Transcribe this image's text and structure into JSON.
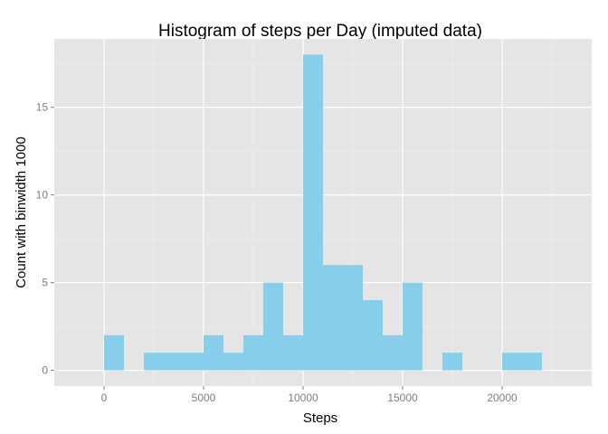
{
  "chart_data": {
    "type": "bar",
    "title": "Histogram of steps per Day (imputed data)",
    "xlabel": "Steps",
    "ylabel": "Count with binwidth 1000",
    "binwidth": 1000,
    "bins": [
      {
        "start": 0,
        "end": 1000,
        "count": 2
      },
      {
        "start": 2000,
        "end": 3000,
        "count": 1
      },
      {
        "start": 3000,
        "end": 4000,
        "count": 1
      },
      {
        "start": 4000,
        "end": 5000,
        "count": 1
      },
      {
        "start": 5000,
        "end": 6000,
        "count": 2
      },
      {
        "start": 6000,
        "end": 7000,
        "count": 1
      },
      {
        "start": 7000,
        "end": 8000,
        "count": 2
      },
      {
        "start": 8000,
        "end": 9000,
        "count": 5
      },
      {
        "start": 9000,
        "end": 10000,
        "count": 2
      },
      {
        "start": 10000,
        "end": 11000,
        "count": 18
      },
      {
        "start": 11000,
        "end": 12000,
        "count": 6
      },
      {
        "start": 12000,
        "end": 13000,
        "count": 6
      },
      {
        "start": 13000,
        "end": 14000,
        "count": 4
      },
      {
        "start": 14000,
        "end": 15000,
        "count": 2
      },
      {
        "start": 15000,
        "end": 16000,
        "count": 5
      },
      {
        "start": 17000,
        "end": 18000,
        "count": 1
      },
      {
        "start": 20000,
        "end": 21000,
        "count": 1
      },
      {
        "start": 21000,
        "end": 22000,
        "count": 1
      }
    ],
    "xlim": [
      -2500,
      24500
    ],
    "ylim": [
      -0.9,
      18.9
    ],
    "x_ticks": [
      0,
      5000,
      10000,
      15000,
      20000
    ],
    "x_tick_labels": [
      "0",
      "5000",
      "10000",
      "15000",
      "20000"
    ],
    "y_ticks": [
      0,
      5,
      10,
      15
    ],
    "y_tick_labels": [
      "0",
      "5",
      "10",
      "15"
    ],
    "grid": true,
    "colors": {
      "bar_fill": "#87ceeb",
      "panel_background": "#e5e5e5",
      "grid_major": "#ffffff",
      "grid_minor": "#f2f2f2",
      "tick_label": "#7f7f7f",
      "text": "#000000"
    }
  }
}
